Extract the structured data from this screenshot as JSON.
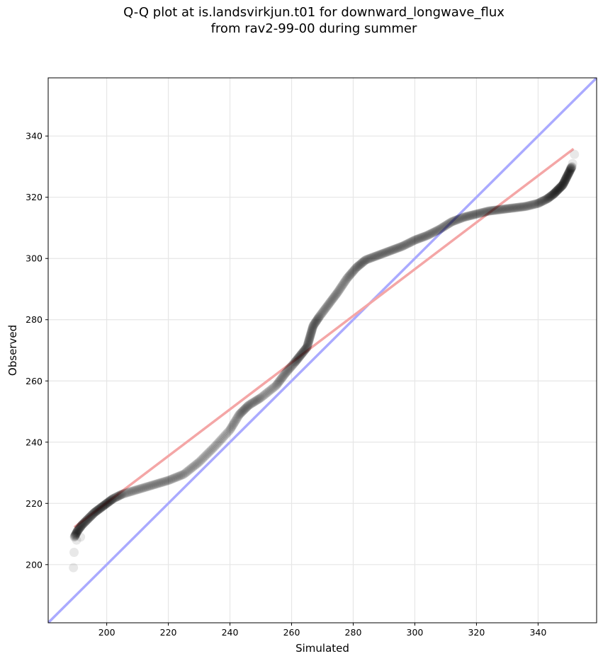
{
  "chart_data": {
    "type": "scatter",
    "title": "Q-Q plot at is.landsvirkjun.t01 for downward_longwave_flux\nfrom rav2-99-00 during summer",
    "xlabel": "Simulated",
    "ylabel": "Observed",
    "xlim": [
      181,
      359
    ],
    "ylim": [
      181,
      359
    ],
    "xticks": [
      200,
      220,
      240,
      260,
      280,
      300,
      320,
      340
    ],
    "yticks": [
      200,
      220,
      240,
      260,
      280,
      300,
      320,
      340
    ],
    "grid": true,
    "quantile_curve": {
      "x": [
        189.5,
        190.5,
        192,
        194,
        196,
        198,
        200,
        202,
        205,
        210,
        215,
        220,
        225,
        230,
        235,
        240,
        243,
        246,
        250,
        255,
        258,
        261,
        263,
        265,
        266,
        267,
        269,
        272,
        275,
        278,
        281,
        284,
        288,
        292,
        296,
        300,
        304,
        308,
        312,
        316,
        320,
        324,
        328,
        332,
        336,
        340,
        343,
        345,
        346.5,
        348,
        349,
        350,
        351
      ],
      "y": [
        209,
        211,
        213,
        215,
        217,
        218.5,
        220,
        221.5,
        223,
        224.5,
        226,
        227.5,
        229.5,
        233.5,
        238.5,
        244,
        249,
        252,
        254.5,
        258.5,
        262.5,
        266,
        268.5,
        271,
        274.5,
        278,
        281,
        285,
        289,
        293.5,
        297,
        299.5,
        301,
        302.5,
        304,
        306,
        307.5,
        309.5,
        312,
        313.5,
        314.5,
        315.5,
        316,
        316.5,
        317,
        318,
        319.5,
        321,
        322.5,
        324,
        326,
        328,
        330
      ]
    },
    "tail_points": {
      "x": [
        189.2,
        189.4,
        190.2,
        191.5,
        350.5,
        351.2,
        351.8
      ],
      "y": [
        199,
        204,
        208,
        209,
        329.5,
        331,
        334
      ]
    },
    "reference_lines": [
      {
        "color": "#aaaaff",
        "x": [
          181,
          359
        ],
        "y": [
          181,
          359
        ]
      },
      {
        "color": "#f4a6a6",
        "x": [
          189.5,
          351.5
        ],
        "y": [
          212.2,
          335.8
        ]
      }
    ],
    "point_color": "#000000"
  }
}
